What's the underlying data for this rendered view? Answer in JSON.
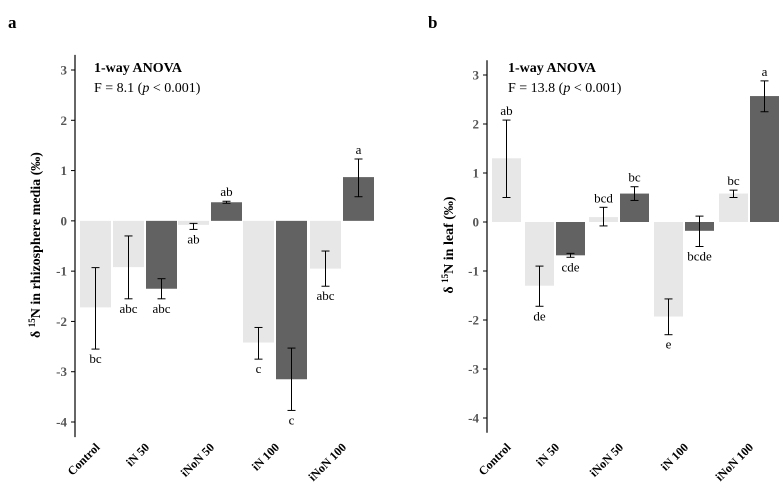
{
  "colors": {
    "light_bar": "#e6e7e6",
    "dark_bar": "#626262",
    "axis": "#000000",
    "tick_label": "#555555"
  },
  "chart_data": [
    {
      "type": "bar",
      "panel": "a",
      "stat_title": "1-way ANOVA",
      "stat_f": "F = 8.1 (",
      "stat_p": "p",
      "stat_tail": " <  0.001)",
      "ylabel_prefix": "δ ",
      "ylabel_sup": "15",
      "ylabel_suffix": "N in rhizosphere media (‰)",
      "ylim": [
        -4.3,
        3.3
      ],
      "yticks": [
        3,
        2,
        1,
        0,
        -1,
        -2,
        -3,
        -4
      ],
      "ytick_labels": [
        "3",
        "2",
        "1",
        "0",
        "-1",
        "-2",
        "-3",
        "-4"
      ],
      "category_labels": [
        "Control",
        "iN 50",
        "iNoN 50",
        "iN 100",
        "iNoN 100"
      ],
      "bars": [
        {
          "value": -1.72,
          "err_low": -2.55,
          "err_high": -0.93,
          "letter": "bc",
          "shade": "light"
        },
        {
          "value": -0.92,
          "err_low": -1.55,
          "err_high": -0.3,
          "letter": "abc",
          "shade": "light"
        },
        {
          "value": -1.35,
          "err_low": -1.55,
          "err_high": -1.15,
          "letter": "abc",
          "shade": "dark"
        },
        {
          "value": -0.08,
          "err_low": -0.17,
          "err_high": -0.05,
          "letter": "ab",
          "shade": "light"
        },
        {
          "value": 0.37,
          "err_low": 0.35,
          "err_high": 0.39,
          "letter": "ab",
          "shade": "dark"
        },
        {
          "value": -2.42,
          "err_low": -2.75,
          "err_high": -2.12,
          "letter": "c",
          "shade": "light"
        },
        {
          "value": -3.15,
          "err_low": -3.77,
          "err_high": -2.53,
          "letter": "c",
          "shade": "dark"
        },
        {
          "value": -0.95,
          "err_low": -1.3,
          "err_high": -0.6,
          "letter": "abc",
          "shade": "light"
        },
        {
          "value": 0.87,
          "err_low": 0.48,
          "err_high": 1.23,
          "letter": "a",
          "shade": "dark"
        }
      ]
    },
    {
      "type": "bar",
      "panel": "b",
      "stat_title": "1-way ANOVA",
      "stat_f": "F = 13.8 (",
      "stat_p": "p",
      "stat_tail": " <  0.001)",
      "ylabel_prefix": "δ ",
      "ylabel_sup": "15",
      "ylabel_suffix": "N in leaf (‰)",
      "ylim": [
        -4.3,
        3.3
      ],
      "yticks": [
        3,
        2,
        1,
        0,
        -1,
        -2,
        -3,
        -4
      ],
      "ytick_labels": [
        "3",
        "2",
        "1",
        "0",
        "-1",
        "-2",
        "-3",
        "-4"
      ],
      "category_labels": [
        "Control",
        "iN 50",
        "iNoN 50",
        "iN 100",
        "iNoN 100"
      ],
      "bars": [
        {
          "value": 1.3,
          "err_low": 0.5,
          "err_high": 2.08,
          "letter": "ab",
          "shade": "light"
        },
        {
          "value": -1.3,
          "err_low": -1.72,
          "err_high": -0.9,
          "letter": "de",
          "shade": "light"
        },
        {
          "value": -0.68,
          "err_low": -0.72,
          "err_high": -0.64,
          "letter": "cde",
          "shade": "dark"
        },
        {
          "value": 0.1,
          "err_low": -0.08,
          "err_high": 0.3,
          "letter": "bcd",
          "shade": "light"
        },
        {
          "value": 0.58,
          "err_low": 0.44,
          "err_high": 0.72,
          "letter": "bc",
          "shade": "dark"
        },
        {
          "value": -1.93,
          "err_low": -2.3,
          "err_high": -1.57,
          "letter": "e",
          "shade": "light"
        },
        {
          "value": -0.18,
          "err_low": -0.5,
          "err_high": 0.12,
          "letter": "bcde",
          "shade": "dark"
        },
        {
          "value": 0.58,
          "err_low": 0.5,
          "err_high": 0.65,
          "letter": "bc",
          "shade": "light"
        },
        {
          "value": 2.57,
          "err_low": 2.25,
          "err_high": 2.88,
          "letter": "a",
          "shade": "dark"
        }
      ]
    }
  ]
}
